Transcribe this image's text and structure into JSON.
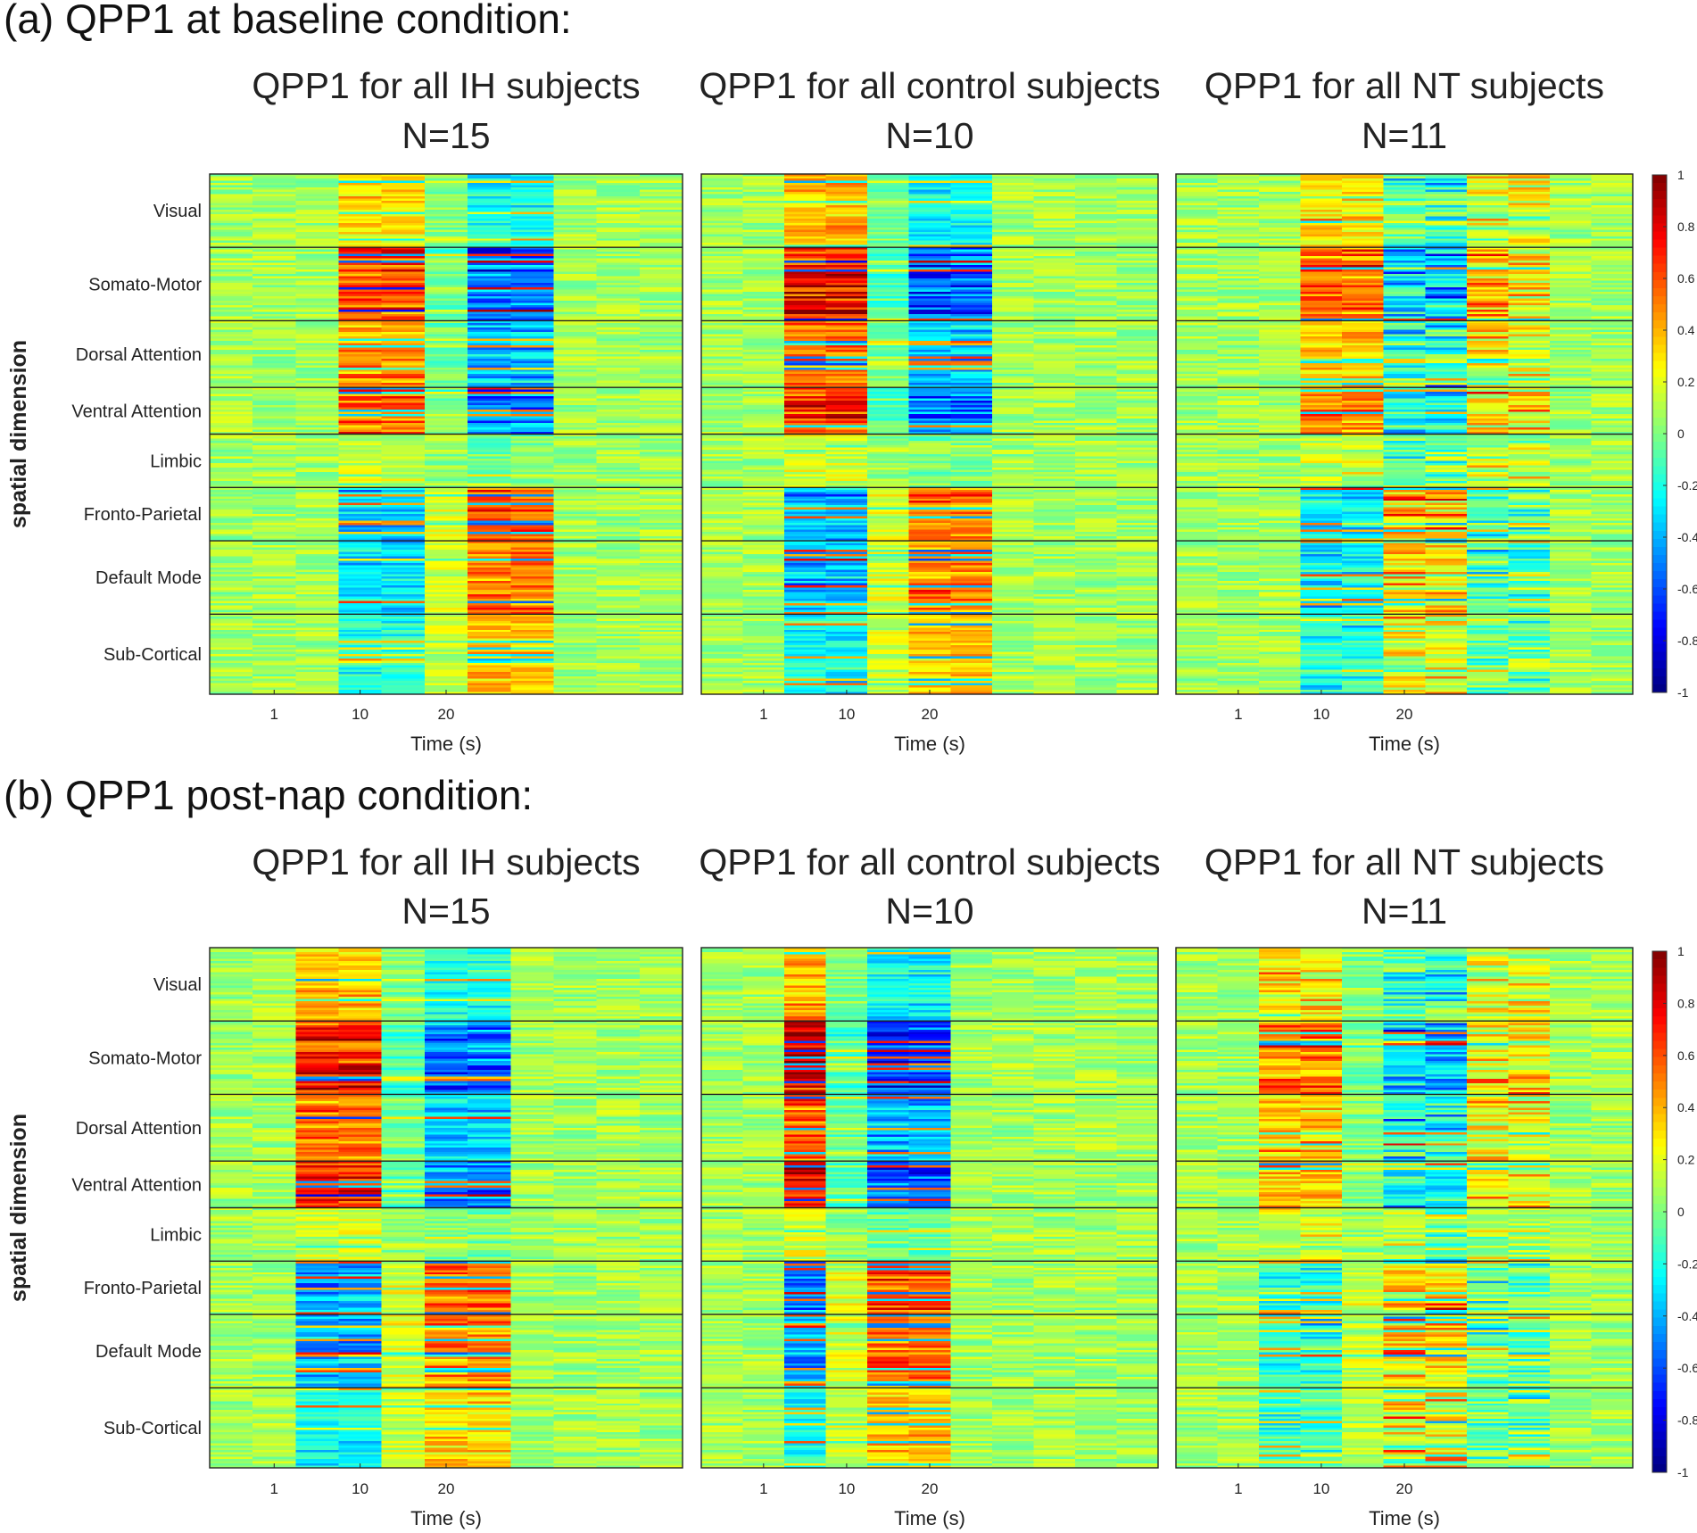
{
  "figure": {
    "sections": [
      {
        "id": "a",
        "title": "(a) QPP1 at baseline condition:",
        "y_axis_label": "spatial dimension",
        "seed": 11,
        "panels": [
          {
            "title": "QPP1 for all IH subjects",
            "n_label": "N=15",
            "xlabel": "Time (s)",
            "xticks": [
              "1",
              "10",
              "20"
            ],
            "events": [
              [
                3,
                5,
                0.65,
                0
              ],
              [
                5,
                6,
                -0.15,
                0
              ],
              [
                6,
                8,
                -0.75,
                0
              ]
            ]
          },
          {
            "title": "QPP1 for all control subjects",
            "n_label": "N=10",
            "xlabel": "Time (s)",
            "xticks": [
              "1",
              "10",
              "20"
            ],
            "events": [
              [
                2,
                4,
                0.8,
                0
              ],
              [
                4,
                5,
                -0.2,
                0
              ],
              [
                5,
                7,
                -0.75,
                0
              ]
            ]
          },
          {
            "title": "QPP1 for all NT subjects",
            "n_label": "N=11",
            "xlabel": "Time (s)",
            "xticks": [
              "1",
              "10",
              "20"
            ],
            "events": [
              [
                3,
                5,
                0.7,
                0.2
              ],
              [
                5,
                7,
                -0.75,
                0.4
              ],
              [
                7,
                9,
                0.6,
                0.5
              ]
            ]
          }
        ]
      },
      {
        "id": "b",
        "title": "(b) QPP1 post-nap condition:",
        "y_axis_label": "spatial dimension",
        "seed": 29,
        "panels": [
          {
            "title": "QPP1 for all IH subjects",
            "n_label": "N=15",
            "xlabel": "Time (s)",
            "xticks": [
              "1",
              "10",
              "20"
            ],
            "events": [
              [
                2,
                4,
                0.75,
                0
              ],
              [
                4,
                5,
                -0.2,
                0
              ],
              [
                5,
                7,
                -0.7,
                0
              ]
            ]
          },
          {
            "title": "QPP1 for all control subjects",
            "n_label": "N=10",
            "xlabel": "Time (s)",
            "xticks": [
              "1",
              "10",
              "20"
            ],
            "events": [
              [
                2,
                3,
                0.85,
                0
              ],
              [
                3,
                4,
                -0.2,
                0
              ],
              [
                4,
                6,
                -0.8,
                0
              ]
            ]
          },
          {
            "title": "QPP1 for all NT subjects",
            "n_label": "N=11",
            "xlabel": "Time (s)",
            "xticks": [
              "1",
              "10",
              "20"
            ],
            "events": [
              [
                2,
                4,
                0.65,
                0.3
              ],
              [
                4,
                5,
                -0.15,
                0.2
              ],
              [
                5,
                7,
                -0.8,
                0.4
              ],
              [
                7,
                9,
                0.55,
                0.5
              ]
            ]
          }
        ]
      }
    ]
  },
  "chart_data": {
    "type": "heatmap",
    "description_units": "QPP correlation; rows = brain networks (spatial dimension), columns = time bins",
    "y_categories": [
      "Visual",
      "Somato-Motor",
      "Dorsal Attention",
      "Ventral Attention",
      "Limbic",
      "Fronto-Parietal",
      "Default Mode",
      "Sub-Cortical"
    ],
    "network_row_weights": [
      11,
      11,
      10,
      7,
      8,
      8,
      11,
      12
    ],
    "network_phase_sign": [
      0.45,
      1,
      0.7,
      0.9,
      0.15,
      -0.75,
      -0.7,
      -0.45
    ],
    "n_time_bins": 11,
    "xlabel": "Time (s)",
    "xticks": [
      "1",
      "10",
      "20"
    ],
    "xtick_bins": [
      1.5,
      3.5,
      5.5
    ],
    "colorbar": {
      "vmin": -1,
      "vmax": 1,
      "colormap": "jet",
      "ticks": [
        "1",
        "0.8",
        "0.6",
        "0.4",
        "0.2",
        "0",
        "-0.2",
        "-0.4",
        "-0.6",
        "-0.8",
        "-1"
      ],
      "tick_values": [
        1,
        0.8,
        0.6,
        0.4,
        0.2,
        0,
        -0.2,
        -0.4,
        -0.6,
        -0.8,
        -1
      ]
    }
  }
}
